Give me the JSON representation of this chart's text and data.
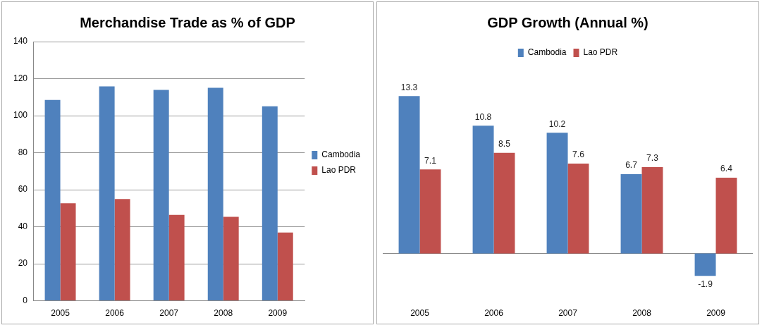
{
  "chart_data": [
    {
      "type": "bar",
      "title": "Merchandise Trade as % of GDP",
      "categories": [
        "2005",
        "2006",
        "2007",
        "2008",
        "2009"
      ],
      "series": [
        {
          "name": "Cambodia",
          "color": "#4f81bd",
          "values": [
            108.5,
            115.8,
            113.9,
            115.1,
            105.1
          ]
        },
        {
          "name": "Lao PDR",
          "color": "#c0504d",
          "values": [
            52.7,
            55.0,
            46.4,
            45.4,
            36.9
          ]
        }
      ],
      "ylim": [
        0,
        140
      ],
      "yticks": [
        0,
        20,
        40,
        60,
        80,
        100,
        120,
        140
      ],
      "grid": "y",
      "legend": "right"
    },
    {
      "type": "bar",
      "title": "GDP Growth (Annual %)",
      "categories": [
        "2005",
        "2006",
        "2007",
        "2008",
        "2009"
      ],
      "series": [
        {
          "name": "Cambodia",
          "color": "#4f81bd",
          "values": [
            13.3,
            10.8,
            10.2,
            6.7,
            -1.9
          ]
        },
        {
          "name": "Lao PDR",
          "color": "#c0504d",
          "values": [
            7.1,
            8.5,
            7.6,
            7.3,
            6.4
          ]
        }
      ],
      "data_labels": true,
      "tick_labels": "x",
      "legend": "top"
    }
  ]
}
